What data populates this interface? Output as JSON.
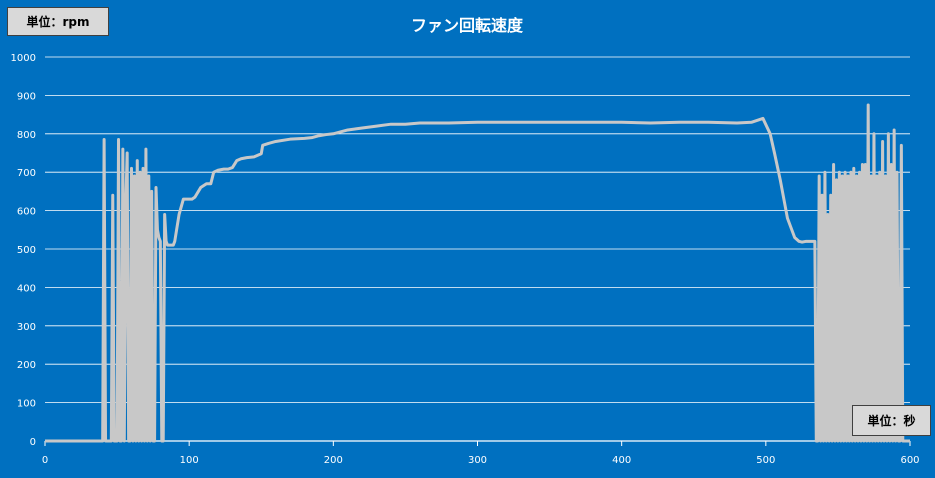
{
  "chart_data": {
    "type": "line",
    "title": "ファン回転速度",
    "y_unit_label": "単位：rpm",
    "x_unit_label": "単位：秒",
    "xlim": [
      0,
      600
    ],
    "ylim": [
      0,
      1000
    ],
    "x_ticks": [
      0,
      100,
      200,
      300,
      400,
      500,
      600
    ],
    "y_ticks": [
      0,
      100,
      200,
      300,
      400,
      500,
      600,
      700,
      800,
      900,
      1000
    ],
    "grid": true,
    "legend": "none",
    "colors": {
      "background": "#0070C0",
      "line": "#C8C8C8",
      "grid": "#FFFFFF",
      "text": "#FFFFFF"
    },
    "series": [
      {
        "x": [
          0,
          40,
          41,
          42,
          43,
          46,
          47,
          48,
          49,
          50,
          51,
          52,
          53,
          54,
          55,
          56,
          57,
          58,
          59,
          60,
          61,
          62,
          63,
          64,
          65,
          66,
          67,
          68,
          69,
          70,
          71,
          72,
          73,
          74,
          75,
          76,
          77,
          78,
          79,
          80,
          81,
          82,
          83,
          84,
          85,
          86,
          87,
          88,
          89,
          90,
          93,
          96,
          98,
          100,
          102,
          104,
          108,
          112,
          113,
          115,
          117,
          120,
          124,
          127,
          130,
          133,
          136,
          140,
          145,
          150,
          151,
          155,
          160,
          170,
          180,
          185,
          190,
          195,
          200,
          210,
          220,
          230,
          240,
          250,
          260,
          270,
          280,
          300,
          320,
          340,
          360,
          380,
          400,
          420,
          440,
          460,
          480,
          490,
          498,
          503,
          506,
          510,
          515,
          520,
          523,
          525,
          528,
          530,
          534,
          535,
          536,
          537,
          538,
          539,
          540,
          541,
          542,
          543,
          544,
          545,
          546,
          547,
          548,
          549,
          550,
          551,
          552,
          553,
          554,
          555,
          556,
          557,
          558,
          559,
          560,
          561,
          562,
          563,
          564,
          565,
          566,
          567,
          568,
          569,
          570,
          571,
          572,
          573,
          574,
          575,
          576,
          577,
          578,
          579,
          580,
          581,
          582,
          583,
          584,
          585,
          586,
          587,
          588,
          589,
          590,
          591,
          592,
          593,
          594,
          595,
          596,
          597,
          600
        ],
        "y": [
          0,
          0,
          785,
          0,
          0,
          0,
          640,
          0,
          0,
          0,
          785,
          0,
          0,
          760,
          0,
          610,
          750,
          0,
          0,
          710,
          0,
          690,
          0,
          730,
          0,
          700,
          0,
          710,
          0,
          760,
          0,
          690,
          0,
          650,
          0,
          0,
          660,
          550,
          530,
          520,
          0,
          0,
          590,
          520,
          510,
          510,
          510,
          510,
          510,
          520,
          590,
          630,
          630,
          630,
          630,
          635,
          660,
          670,
          670,
          670,
          700,
          705,
          708,
          708,
          712,
          730,
          735,
          738,
          740,
          748,
          770,
          775,
          780,
          786,
          788,
          790,
          795,
          798,
          800,
          810,
          815,
          820,
          825,
          825,
          828,
          828,
          828,
          830,
          830,
          830,
          830,
          830,
          830,
          828,
          830,
          830,
          828,
          830,
          840,
          800,
          750,
          680,
          580,
          530,
          520,
          518,
          520,
          520,
          520,
          0,
          0,
          690,
          0,
          640,
          0,
          700,
          0,
          590,
          0,
          640,
          0,
          720,
          0,
          680,
          0,
          700,
          0,
          690,
          0,
          700,
          0,
          690,
          0,
          700,
          0,
          710,
          0,
          690,
          0,
          700,
          0,
          720,
          0,
          720,
          0,
          875,
          0,
          690,
          0,
          800,
          0,
          690,
          0,
          700,
          0,
          780,
          0,
          690,
          0,
          800,
          0,
          720,
          0,
          810,
          0,
          700,
          0,
          0,
          770,
          0,
          0,
          0,
          0
        ]
      }
    ]
  }
}
